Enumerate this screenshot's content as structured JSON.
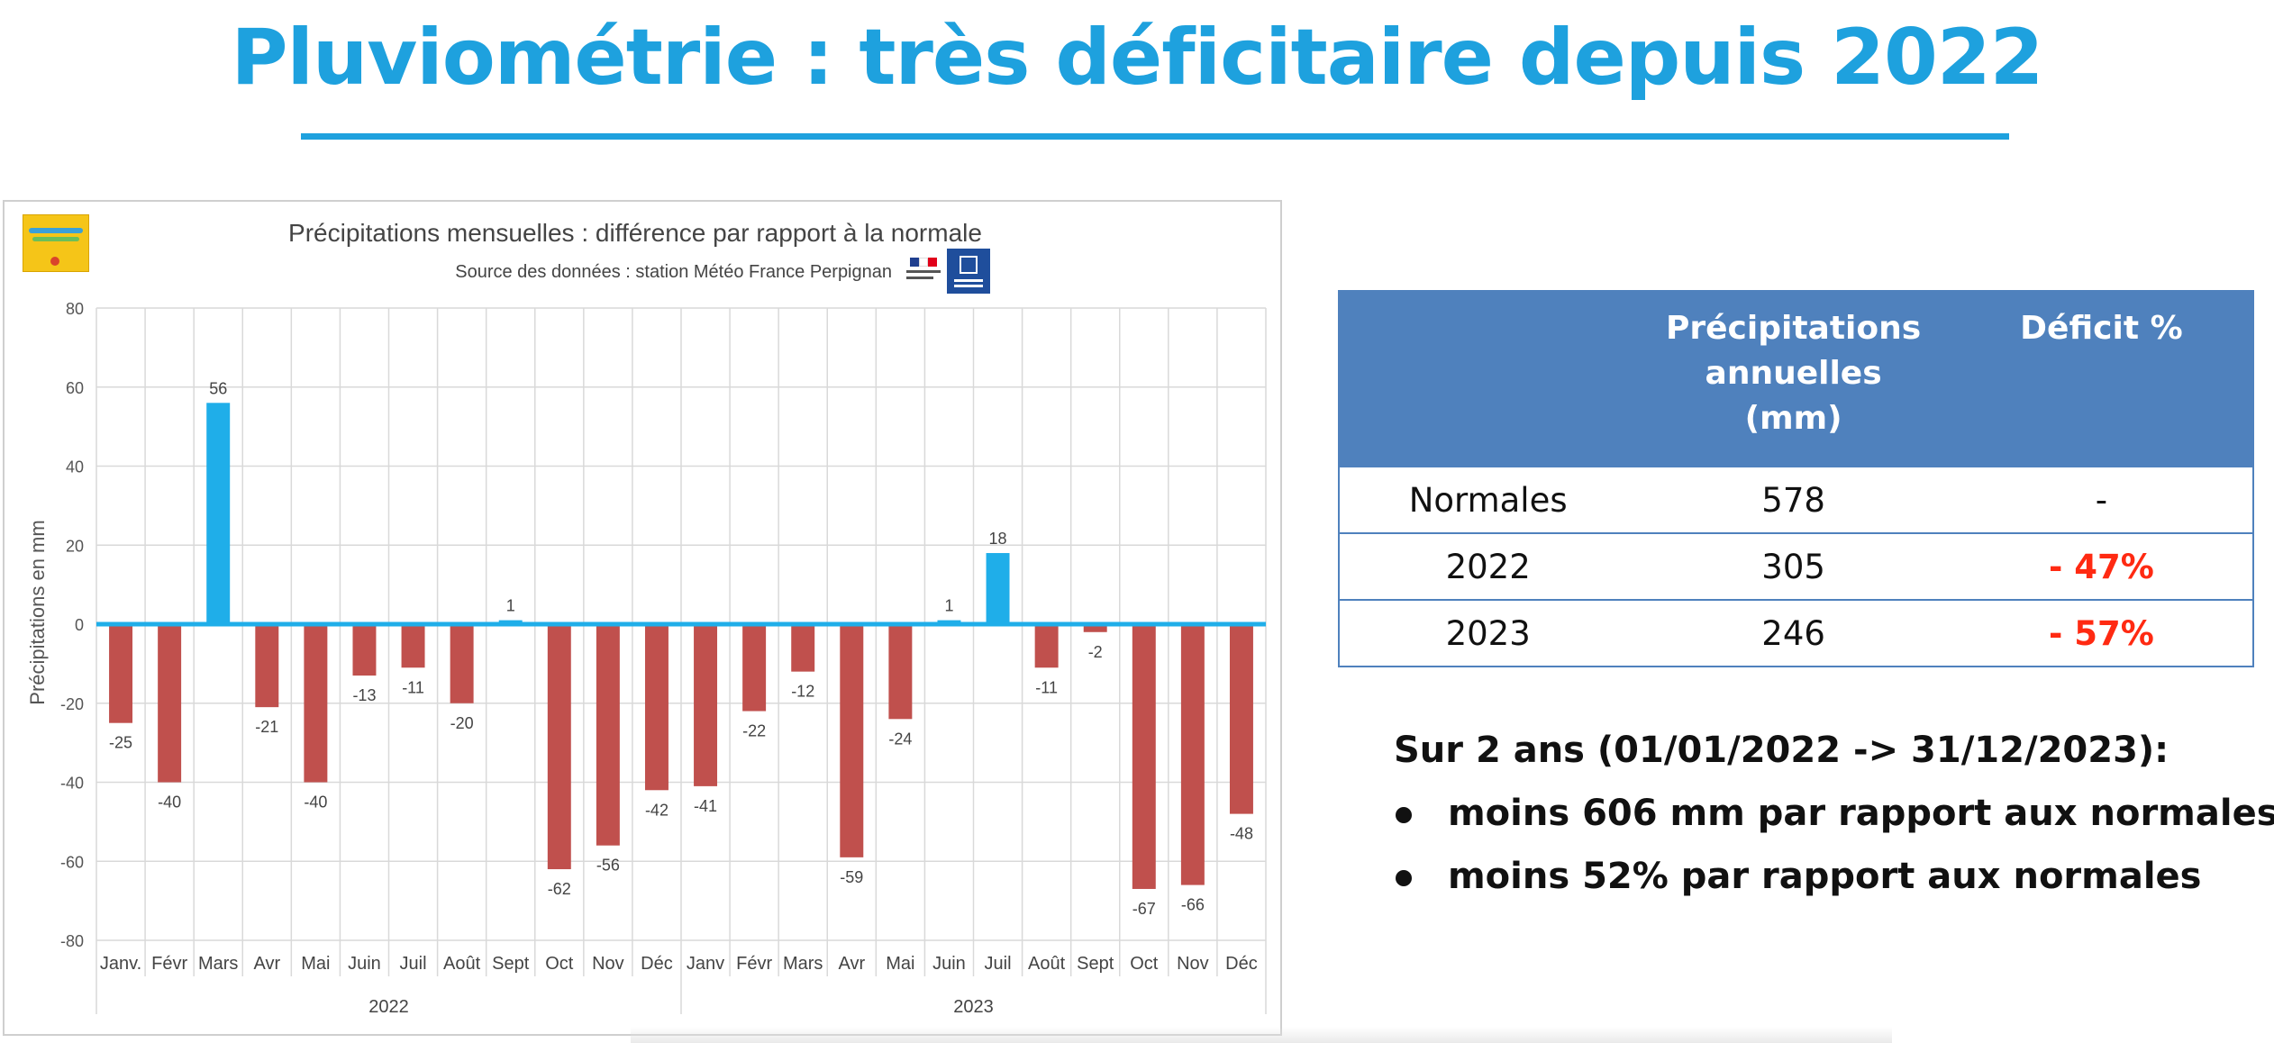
{
  "slide": {
    "title": "Pluviométrie : très déficitaire depuis 2022"
  },
  "colors": {
    "title": "#1ea1de",
    "positive_bar": "#1faee9",
    "negative_bar": "#c0504d",
    "zero_line": "#1faee9",
    "table_header": "#4f81bd",
    "deficit_text": "#ff2a12"
  },
  "chart_data": {
    "type": "bar",
    "title": "Précipitations mensuelles : différence par rapport à la normale",
    "subtitle": "Source des données : station Météo France Perpignan",
    "ylabel": "Précipitations en mm",
    "xlabel": "",
    "ylim": [
      -80,
      80
    ],
    "yticks": [
      80,
      60,
      40,
      20,
      0,
      -20,
      -40,
      -60,
      -80
    ],
    "grid": true,
    "categories": [
      "Janv.",
      "Févr",
      "Mars",
      "Avr",
      "Mai",
      "Juin",
      "Juil",
      "Août",
      "Sept",
      "Oct",
      "Nov",
      "Déc",
      "Janv",
      "Févr",
      "Mars",
      "Avr",
      "Mai",
      "Juin",
      "Juil",
      "Août",
      "Sept",
      "Oct",
      "Nov",
      "Déc"
    ],
    "year_groups": [
      {
        "label": "2022",
        "count": 12
      },
      {
        "label": "2023",
        "count": 12
      }
    ],
    "values": [
      -25,
      -40,
      56,
      -21,
      -40,
      -13,
      -11,
      -20,
      1,
      -62,
      -56,
      -42,
      -41,
      -22,
      -12,
      -59,
      -24,
      1,
      18,
      -11,
      -2,
      -67,
      -66,
      -48
    ]
  },
  "table": {
    "headers": [
      "",
      "Précipitations annuelles (mm)",
      "Déficit %"
    ],
    "header_lines": [
      [
        ""
      ],
      [
        "Précipitations",
        "annuelles",
        "(mm)"
      ],
      [
        "Déficit %"
      ]
    ],
    "rows": [
      {
        "label": "Normales",
        "precip": "578",
        "deficit": "-"
      },
      {
        "label": "2022",
        "precip": "305",
        "deficit": "- 47%"
      },
      {
        "label": "2023",
        "precip": "246",
        "deficit": "- 57%"
      }
    ]
  },
  "summary": {
    "heading": "Sur 2 ans (01/01/2022 -> 31/12/2023):",
    "bullets": [
      "moins 606 mm par rapport aux normales",
      "moins 52% par rapport aux normales"
    ]
  }
}
